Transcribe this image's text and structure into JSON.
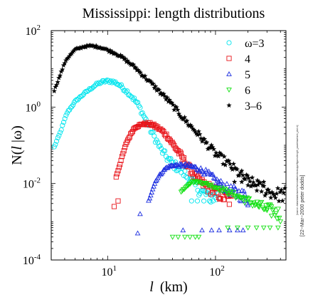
{
  "chart_data": {
    "type": "scatter",
    "title": "Mississippi: length distributions",
    "xlabel": {
      "symbol": "l",
      "unit": "(km)"
    },
    "ylabel": {
      "prefix": "N(",
      "symbol": "l",
      "suffix": " |ω)"
    },
    "x_scale": "log",
    "y_scale": "log",
    "xlim": [
      3,
      450
    ],
    "ylim": [
      0.0001,
      100
    ],
    "x_ticks": [
      {
        "value": 10,
        "base": "10",
        "exp": "1"
      },
      {
        "value": 100,
        "base": "10",
        "exp": "2"
      }
    ],
    "y_ticks": [
      {
        "value": 100,
        "base": "10",
        "exp": "2"
      },
      {
        "value": 1,
        "base": "10",
        "exp": "0"
      },
      {
        "value": 0.01,
        "base": "10",
        "exp": "-2"
      },
      {
        "value": 0.0001,
        "base": "10",
        "exp": "-4"
      }
    ],
    "grid": false,
    "legend_position": "top-right",
    "series": [
      {
        "name": "ω=3",
        "marker": "circle",
        "color": "#00e5ee",
        "curve": [
          [
            3.2,
            0.09
          ],
          [
            3.6,
            0.2
          ],
          [
            4.2,
            0.7
          ],
          [
            5,
            1.4
          ],
          [
            6,
            2.2
          ],
          [
            7,
            3.1
          ],
          [
            8,
            4.0
          ],
          [
            9,
            4.6
          ],
          [
            10,
            4.8
          ],
          [
            11,
            4.7
          ],
          [
            12,
            4.3
          ],
          [
            13,
            3.7
          ],
          [
            14,
            3.1
          ],
          [
            15.5,
            2.4
          ],
          [
            17,
            1.8
          ],
          [
            19,
            1.2
          ],
          [
            21,
            0.7
          ],
          [
            23,
            0.42
          ],
          [
            25,
            0.25
          ],
          [
            28,
            0.14
          ],
          [
            31,
            0.08
          ],
          [
            35,
            0.05
          ],
          [
            40,
            0.033
          ],
          [
            50,
            0.02
          ],
          [
            58,
            0.012
          ],
          [
            75,
            0.006
          ],
          [
            90,
            0.0045
          ],
          [
            105,
            0.0045
          ]
        ],
        "points": 140,
        "outliers": [
          [
            60,
            0.0035
          ],
          [
            68,
            0.0035
          ],
          [
            78,
            0.0035
          ],
          [
            88,
            0.0035
          ]
        ]
      },
      {
        "name": "4",
        "marker": "square",
        "color": "#e8141a",
        "curve": [
          [
            12,
            0.015
          ],
          [
            13,
            0.032
          ],
          [
            14,
            0.065
          ],
          [
            15,
            0.12
          ],
          [
            16,
            0.17
          ],
          [
            17,
            0.24
          ],
          [
            18,
            0.3
          ],
          [
            20,
            0.34
          ],
          [
            22,
            0.37
          ],
          [
            25,
            0.36
          ],
          [
            28,
            0.31
          ],
          [
            32,
            0.24
          ],
          [
            36,
            0.17
          ],
          [
            40,
            0.11
          ],
          [
            45,
            0.07
          ],
          [
            50,
            0.044
          ],
          [
            56,
            0.027
          ],
          [
            63,
            0.017
          ],
          [
            72,
            0.011
          ],
          [
            85,
            0.008
          ],
          [
            100,
            0.006
          ],
          [
            120,
            0.0045
          ],
          [
            140,
            0.0035
          ]
        ],
        "points": 120,
        "outliers": [
          [
            11.5,
            0.0025
          ],
          [
            12.5,
            0.0035
          ]
        ]
      },
      {
        "name": "5",
        "marker": "triangle",
        "color": "#1f30e0",
        "curve": [
          [
            24,
            0.0035
          ],
          [
            26,
            0.007
          ],
          [
            28,
            0.012
          ],
          [
            30,
            0.016
          ],
          [
            32,
            0.02
          ],
          [
            35,
            0.026
          ],
          [
            40,
            0.03
          ],
          [
            45,
            0.03
          ],
          [
            50,
            0.03
          ],
          [
            55,
            0.03
          ],
          [
            60,
            0.028
          ],
          [
            70,
            0.024
          ],
          [
            80,
            0.02
          ],
          [
            90,
            0.016
          ],
          [
            100,
            0.012
          ],
          [
            115,
            0.009
          ],
          [
            130,
            0.007
          ],
          [
            150,
            0.006
          ],
          [
            175,
            0.005
          ],
          [
            200,
            0.004
          ]
        ],
        "points": 100,
        "outliers": [
          [
            20,
            0.0016
          ],
          [
            19,
            0.0005
          ],
          [
            50,
            0.0006
          ],
          [
            75,
            0.0006
          ],
          [
            92,
            0.0006
          ],
          [
            108,
            0.0006
          ],
          [
            135,
            0.0006
          ],
          [
            160,
            0.0006
          ],
          [
            180,
            0.0006
          ]
        ]
      },
      {
        "name": "6",
        "marker": "triangle-down",
        "color": "#12e012",
        "curve": [
          [
            48,
            0.006
          ],
          [
            55,
            0.009
          ],
          [
            60,
            0.011
          ],
          [
            70,
            0.011
          ],
          [
            80,
            0.01
          ],
          [
            90,
            0.009
          ],
          [
            100,
            0.008
          ],
          [
            115,
            0.007
          ],
          [
            130,
            0.006
          ],
          [
            150,
            0.005
          ],
          [
            175,
            0.0042
          ],
          [
            200,
            0.0035
          ],
          [
            230,
            0.003
          ],
          [
            260,
            0.0025
          ],
          [
            300,
            0.0021
          ],
          [
            350,
            0.0018
          ],
          [
            400,
            0.0015
          ]
        ],
        "points": 90,
        "outliers": [
          [
            40,
            0.0004
          ],
          [
            45,
            0.0004
          ],
          [
            52,
            0.0004
          ],
          [
            58,
            0.0004
          ],
          [
            65,
            0.0004
          ],
          [
            70,
            0.0004
          ],
          [
            130,
            0.0007
          ],
          [
            160,
            0.0007
          ],
          [
            200,
            0.0007
          ],
          [
            240,
            0.0007
          ],
          [
            280,
            0.0007
          ],
          [
            320,
            0.0007
          ],
          [
            380,
            0.0007
          ],
          [
            250,
            0.0025
          ],
          [
            300,
            0.002
          ],
          [
            330,
            0.0025
          ]
        ]
      },
      {
        "name": "3–6",
        "marker": "star",
        "color": "#000000",
        "curve": [
          [
            3.2,
            2.7
          ],
          [
            4.1,
            17
          ],
          [
            5,
            32
          ],
          [
            6,
            38
          ],
          [
            7,
            40
          ],
          [
            8,
            38
          ],
          [
            9,
            35
          ],
          [
            10,
            31
          ],
          [
            12,
            25
          ],
          [
            14,
            19
          ],
          [
            16,
            14
          ],
          [
            18,
            11
          ],
          [
            20,
            8
          ],
          [
            23,
            5.5
          ],
          [
            26,
            3.9
          ],
          [
            30,
            2.6
          ],
          [
            35,
            1.7
          ],
          [
            40,
            1.1
          ],
          [
            45,
            0.75
          ],
          [
            50,
            0.52
          ],
          [
            60,
            0.3
          ],
          [
            70,
            0.19
          ],
          [
            80,
            0.12
          ],
          [
            90,
            0.085
          ],
          [
            100,
            0.06
          ],
          [
            120,
            0.04
          ],
          [
            140,
            0.028
          ],
          [
            160,
            0.02
          ],
          [
            180,
            0.015
          ],
          [
            200,
            0.012
          ],
          [
            250,
            0.008
          ],
          [
            300,
            0.0065
          ],
          [
            350,
            0.0055
          ],
          [
            400,
            0.005
          ],
          [
            450,
            0.005
          ]
        ],
        "points": 200,
        "outliers": [
          [
            150,
            0.011
          ],
          [
            175,
            0.011
          ],
          [
            200,
            0.009
          ],
          [
            220,
            0.009
          ],
          [
            245,
            0.012
          ],
          [
            280,
            0.011
          ]
        ]
      }
    ],
    "side_note": "[22−Mar−2000 peter dodds]",
    "side_path": "[source: /data/dodds/work/rivers/data/mississippi/figures/length_powerlaw/rank_plot.m]"
  }
}
